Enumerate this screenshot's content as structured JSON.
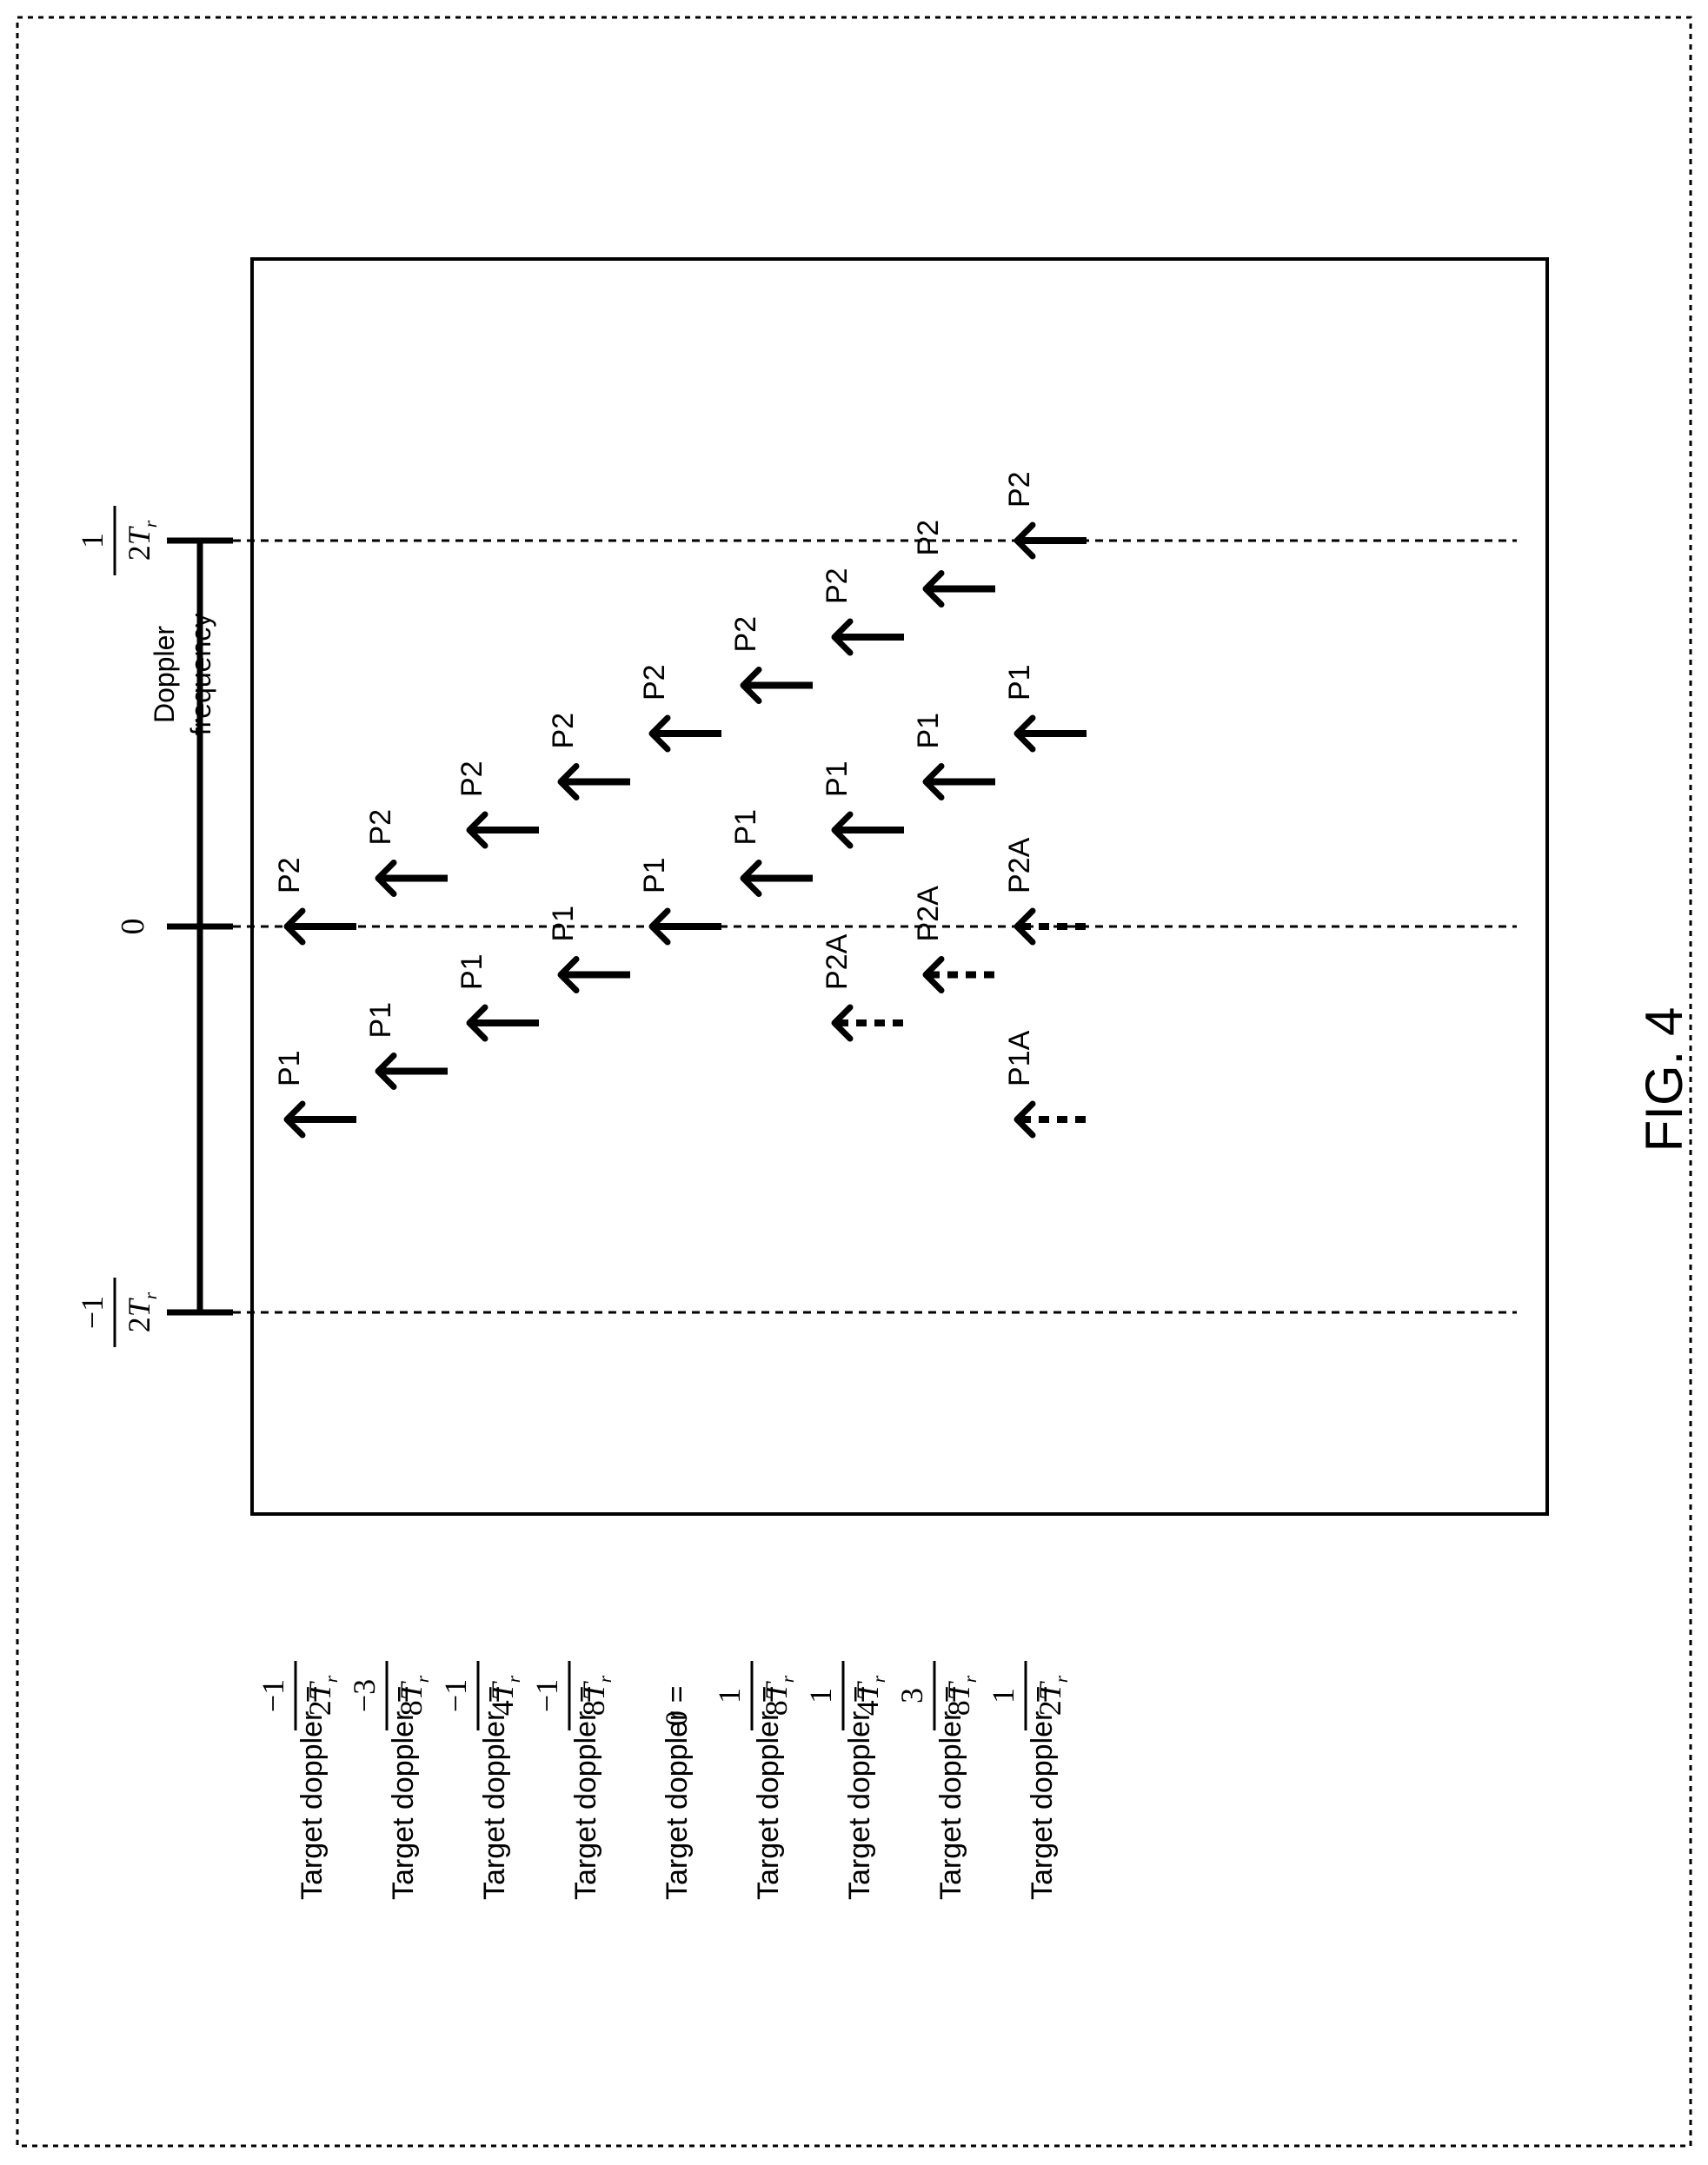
{
  "figure_label": "FIG. 4",
  "axis": {
    "label_line1": "Doppler",
    "label_line2": "frequency",
    "ticks": [
      {
        "num": "−1",
        "den": "2",
        "sym": "T",
        "sub": "r"
      },
      {
        "text": "0"
      },
      {
        "num": "1",
        "den": "2",
        "sym": "T",
        "sub": "r"
      }
    ]
  },
  "rows": [
    {
      "label": "Target doppler =",
      "num": "−1",
      "den": "2",
      "sym": "T",
      "sub": "r",
      "arrows": [
        {
          "pos": -4,
          "tag": "P1",
          "style": "solid"
        },
        {
          "pos": 0,
          "tag": "P2",
          "style": "solid"
        }
      ]
    },
    {
      "label": "Target doppler =",
      "num": "−3",
      "den": "8",
      "sym": "T",
      "sub": "r",
      "arrows": [
        {
          "pos": -3,
          "tag": "P1",
          "style": "solid"
        },
        {
          "pos": 1,
          "tag": "P2",
          "style": "solid"
        }
      ]
    },
    {
      "label": "Target doppler =",
      "num": "−1",
      "den": "4",
      "sym": "T",
      "sub": "r",
      "arrows": [
        {
          "pos": -2,
          "tag": "P1",
          "style": "solid"
        },
        {
          "pos": 2,
          "tag": "P2",
          "style": "solid"
        }
      ]
    },
    {
      "label": "Target doppler =",
      "num": "−1",
      "den": "8",
      "sym": "T",
      "sub": "r",
      "arrows": [
        {
          "pos": -1,
          "tag": "P1",
          "style": "solid"
        },
        {
          "pos": 3,
          "tag": "P2",
          "style": "solid"
        }
      ]
    },
    {
      "label": "Target doppler =",
      "plain": "0",
      "arrows": [
        {
          "pos": 0,
          "tag": "P1",
          "style": "solid"
        },
        {
          "pos": 4,
          "tag": "P2",
          "style": "solid"
        }
      ]
    },
    {
      "label": "Target doppler =",
      "num": "1",
      "den": "8",
      "sym": "T",
      "sub": "r",
      "arrows": [
        {
          "pos": 1,
          "tag": "P1",
          "style": "solid"
        },
        {
          "pos": 5,
          "tag": "P2",
          "style": "solid"
        }
      ]
    },
    {
      "label": "Target doppler =",
      "num": "1",
      "den": "4",
      "sym": "T",
      "sub": "r",
      "arrows": [
        {
          "pos": 2,
          "tag": "P1",
          "style": "solid"
        },
        {
          "pos": 6,
          "tag": "P2",
          "style": "solid"
        },
        {
          "pos": -2,
          "tag": "P2A",
          "style": "dashed"
        }
      ]
    },
    {
      "label": "Target doppler =",
      "num": "3",
      "den": "8",
      "sym": "T",
      "sub": "r",
      "arrows": [
        {
          "pos": 3,
          "tag": "P1",
          "style": "solid"
        },
        {
          "pos": 7,
          "tag": "P2",
          "style": "solid"
        },
        {
          "pos": -1,
          "tag": "P2A",
          "style": "dashed"
        }
      ]
    },
    {
      "label": "Target doppler =",
      "num": "1",
      "den": "2",
      "sym": "T",
      "sub": "r",
      "arrows": [
        {
          "pos": 4,
          "tag": "P1",
          "style": "solid"
        },
        {
          "pos": 8,
          "tag": "P2",
          "style": "solid"
        },
        {
          "pos": -4,
          "tag": "P1A",
          "style": "dashed"
        },
        {
          "pos": 0,
          "tag": "P2A",
          "style": "dashed"
        }
      ]
    }
  ]
}
